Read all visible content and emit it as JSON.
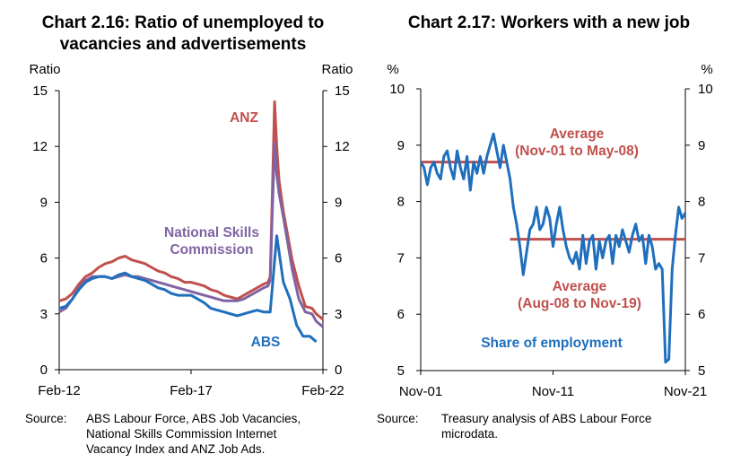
{
  "chart_data": [
    {
      "type": "line",
      "title_lines": [
        "Chart 2.16: Ratio of unemployed to",
        "vacancies and advertisements"
      ],
      "ylabel_left": "Ratio",
      "ylabel_right": "Ratio",
      "ylim": [
        0,
        15
      ],
      "yticks": [
        0,
        3,
        6,
        9,
        12,
        15
      ],
      "xlim": [
        "2012-02",
        "2022-02"
      ],
      "xticks": [
        {
          "label": "Feb-12",
          "date": "2012-02"
        },
        {
          "label": "Feb-17",
          "date": "2017-02"
        },
        {
          "label": "Feb-22",
          "date": "2022-02"
        }
      ],
      "series": [
        {
          "name": "ANZ",
          "color": "#c0504d",
          "points": [
            [
              "2012-02",
              3.7
            ],
            [
              "2012-05",
              3.8
            ],
            [
              "2012-08",
              4.1
            ],
            [
              "2012-11",
              4.6
            ],
            [
              "2013-02",
              5.0
            ],
            [
              "2013-05",
              5.2
            ],
            [
              "2013-08",
              5.5
            ],
            [
              "2013-11",
              5.7
            ],
            [
              "2014-02",
              5.8
            ],
            [
              "2014-05",
              6.0
            ],
            [
              "2014-08",
              6.1
            ],
            [
              "2014-11",
              5.9
            ],
            [
              "2015-02",
              5.8
            ],
            [
              "2015-05",
              5.7
            ],
            [
              "2015-08",
              5.5
            ],
            [
              "2015-11",
              5.3
            ],
            [
              "2016-02",
              5.2
            ],
            [
              "2016-05",
              5.0
            ],
            [
              "2016-08",
              4.9
            ],
            [
              "2016-11",
              4.7
            ],
            [
              "2017-02",
              4.7
            ],
            [
              "2017-05",
              4.6
            ],
            [
              "2017-08",
              4.5
            ],
            [
              "2017-11",
              4.3
            ],
            [
              "2018-02",
              4.2
            ],
            [
              "2018-05",
              4.0
            ],
            [
              "2018-08",
              3.9
            ],
            [
              "2018-11",
              3.8
            ],
            [
              "2019-02",
              4.0
            ],
            [
              "2019-05",
              4.2
            ],
            [
              "2019-08",
              4.4
            ],
            [
              "2019-11",
              4.6
            ],
            [
              "2020-01",
              4.7
            ],
            [
              "2020-02",
              5.0
            ],
            [
              "2020-03",
              9.5
            ],
            [
              "2020-04",
              14.4
            ],
            [
              "2020-05",
              12.0
            ],
            [
              "2020-06",
              10.2
            ],
            [
              "2020-08",
              8.5
            ],
            [
              "2020-10",
              7.2
            ],
            [
              "2020-12",
              5.9
            ],
            [
              "2021-03",
              4.5
            ],
            [
              "2021-06",
              3.4
            ],
            [
              "2021-09",
              3.3
            ],
            [
              "2021-11",
              3.0
            ],
            [
              "2022-02",
              2.7
            ]
          ]
        },
        {
          "name": "National Skills Commission",
          "color": "#8064a2",
          "points": [
            [
              "2012-02",
              3.1
            ],
            [
              "2012-05",
              3.3
            ],
            [
              "2012-08",
              3.8
            ],
            [
              "2012-11",
              4.4
            ],
            [
              "2013-02",
              4.8
            ],
            [
              "2013-05",
              5.0
            ],
            [
              "2013-08",
              5.0
            ],
            [
              "2013-11",
              5.0
            ],
            [
              "2014-02",
              4.9
            ],
            [
              "2014-05",
              5.0
            ],
            [
              "2014-08",
              5.1
            ],
            [
              "2014-11",
              5.0
            ],
            [
              "2015-02",
              5.0
            ],
            [
              "2015-05",
              4.9
            ],
            [
              "2015-08",
              4.8
            ],
            [
              "2015-11",
              4.7
            ],
            [
              "2016-02",
              4.6
            ],
            [
              "2016-05",
              4.5
            ],
            [
              "2016-08",
              4.4
            ],
            [
              "2016-11",
              4.3
            ],
            [
              "2017-02",
              4.2
            ],
            [
              "2017-05",
              4.1
            ],
            [
              "2017-08",
              4.0
            ],
            [
              "2017-11",
              3.9
            ],
            [
              "2018-02",
              3.8
            ],
            [
              "2018-05",
              3.7
            ],
            [
              "2018-08",
              3.7
            ],
            [
              "2018-11",
              3.7
            ],
            [
              "2019-02",
              3.8
            ],
            [
              "2019-05",
              4.0
            ],
            [
              "2019-08",
              4.2
            ],
            [
              "2019-11",
              4.4
            ],
            [
              "2020-01",
              4.5
            ],
            [
              "2020-02",
              4.8
            ],
            [
              "2020-03",
              8.5
            ],
            [
              "2020-04",
              12.2
            ],
            [
              "2020-05",
              10.5
            ],
            [
              "2020-06",
              9.5
            ],
            [
              "2020-08",
              8.2
            ],
            [
              "2020-10",
              6.8
            ],
            [
              "2020-12",
              5.4
            ],
            [
              "2021-03",
              3.8
            ],
            [
              "2021-06",
              3.1
            ],
            [
              "2021-09",
              3.0
            ],
            [
              "2021-11",
              2.6
            ],
            [
              "2022-02",
              2.3
            ]
          ]
        },
        {
          "name": "ABS",
          "color": "#1f6fbd",
          "points": [
            [
              "2012-02",
              3.3
            ],
            [
              "2012-05",
              3.4
            ],
            [
              "2012-08",
              3.8
            ],
            [
              "2012-11",
              4.3
            ],
            [
              "2013-02",
              4.7
            ],
            [
              "2013-05",
              4.9
            ],
            [
              "2013-08",
              5.0
            ],
            [
              "2013-11",
              5.0
            ],
            [
              "2014-02",
              4.9
            ],
            [
              "2014-05",
              5.1
            ],
            [
              "2014-08",
              5.2
            ],
            [
              "2014-11",
              5.0
            ],
            [
              "2015-02",
              4.9
            ],
            [
              "2015-05",
              4.8
            ],
            [
              "2015-08",
              4.6
            ],
            [
              "2015-11",
              4.4
            ],
            [
              "2016-02",
              4.3
            ],
            [
              "2016-05",
              4.1
            ],
            [
              "2016-08",
              4.0
            ],
            [
              "2016-11",
              4.0
            ],
            [
              "2017-02",
              4.0
            ],
            [
              "2017-05",
              3.8
            ],
            [
              "2017-08",
              3.6
            ],
            [
              "2017-11",
              3.3
            ],
            [
              "2018-02",
              3.2
            ],
            [
              "2018-05",
              3.1
            ],
            [
              "2018-08",
              3.0
            ],
            [
              "2018-11",
              2.9
            ],
            [
              "2019-02",
              3.0
            ],
            [
              "2019-05",
              3.1
            ],
            [
              "2019-08",
              3.2
            ],
            [
              "2019-11",
              3.1
            ],
            [
              "2020-02",
              3.1
            ],
            [
              "2020-05",
              7.2
            ],
            [
              "2020-08",
              4.7
            ],
            [
              "2020-11",
              3.8
            ],
            [
              "2021-02",
              2.4
            ],
            [
              "2021-05",
              1.8
            ],
            [
              "2021-08",
              1.8
            ],
            [
              "2021-11",
              1.5
            ]
          ]
        }
      ]
    },
    {
      "type": "line",
      "title_lines": [
        "Chart 2.17: Workers with a new job"
      ],
      "ylabel_left": "%",
      "ylabel_right": "%",
      "ylim": [
        5,
        10
      ],
      "yticks": [
        5,
        6,
        7,
        8,
        9,
        10
      ],
      "xlim": [
        "2001-11",
        "2021-11"
      ],
      "xticks": [
        {
          "label": "Nov-01",
          "date": "2001-11"
        },
        {
          "label": "Nov-11",
          "date": "2011-11"
        },
        {
          "label": "Nov-21",
          "date": "2021-11"
        }
      ],
      "series": [
        {
          "name": "Share of employment",
          "color": "#1f6fbd",
          "points": [
            [
              "2001-11",
              8.7
            ],
            [
              "2002-02",
              8.6
            ],
            [
              "2002-05",
              8.3
            ],
            [
              "2002-08",
              8.6
            ],
            [
              "2002-11",
              8.7
            ],
            [
              "2003-02",
              8.5
            ],
            [
              "2003-05",
              8.4
            ],
            [
              "2003-08",
              8.8
            ],
            [
              "2003-11",
              8.9
            ],
            [
              "2004-02",
              8.6
            ],
            [
              "2004-05",
              8.4
            ],
            [
              "2004-08",
              8.9
            ],
            [
              "2004-11",
              8.6
            ],
            [
              "2005-02",
              8.4
            ],
            [
              "2005-05",
              8.8
            ],
            [
              "2005-08",
              8.2
            ],
            [
              "2005-11",
              8.7
            ],
            [
              "2006-02",
              8.5
            ],
            [
              "2006-05",
              8.8
            ],
            [
              "2006-08",
              8.5
            ],
            [
              "2006-11",
              8.8
            ],
            [
              "2007-02",
              9.0
            ],
            [
              "2007-05",
              9.2
            ],
            [
              "2007-08",
              8.9
            ],
            [
              "2007-11",
              8.6
            ],
            [
              "2008-02",
              9.0
            ],
            [
              "2008-05",
              8.7
            ],
            [
              "2008-08",
              8.4
            ],
            [
              "2008-11",
              7.9
            ],
            [
              "2009-02",
              7.6
            ],
            [
              "2009-05",
              7.2
            ],
            [
              "2009-08",
              6.7
            ],
            [
              "2009-11",
              7.1
            ],
            [
              "2010-02",
              7.5
            ],
            [
              "2010-05",
              7.6
            ],
            [
              "2010-08",
              7.9
            ],
            [
              "2010-11",
              7.5
            ],
            [
              "2011-02",
              7.6
            ],
            [
              "2011-05",
              7.9
            ],
            [
              "2011-08",
              7.7
            ],
            [
              "2011-11",
              7.2
            ],
            [
              "2012-02",
              7.6
            ],
            [
              "2012-05",
              7.9
            ],
            [
              "2012-08",
              7.5
            ],
            [
              "2012-11",
              7.2
            ],
            [
              "2013-02",
              7.0
            ],
            [
              "2013-05",
              6.9
            ],
            [
              "2013-08",
              7.1
            ],
            [
              "2013-11",
              6.8
            ],
            [
              "2014-02",
              7.4
            ],
            [
              "2014-05",
              6.9
            ],
            [
              "2014-08",
              7.3
            ],
            [
              "2014-11",
              7.4
            ],
            [
              "2015-02",
              6.8
            ],
            [
              "2015-05",
              7.3
            ],
            [
              "2015-08",
              7.0
            ],
            [
              "2015-11",
              7.3
            ],
            [
              "2016-02",
              7.4
            ],
            [
              "2016-05",
              6.9
            ],
            [
              "2016-08",
              7.4
            ],
            [
              "2016-11",
              7.2
            ],
            [
              "2017-02",
              7.5
            ],
            [
              "2017-05",
              7.3
            ],
            [
              "2017-08",
              7.1
            ],
            [
              "2017-11",
              7.4
            ],
            [
              "2018-02",
              7.6
            ],
            [
              "2018-05",
              7.3
            ],
            [
              "2018-08",
              7.4
            ],
            [
              "2018-11",
              6.9
            ],
            [
              "2019-02",
              7.4
            ],
            [
              "2019-05",
              7.2
            ],
            [
              "2019-08",
              6.8
            ],
            [
              "2019-11",
              6.9
            ],
            [
              "2020-02",
              6.8
            ],
            [
              "2020-05",
              5.15
            ],
            [
              "2020-08",
              5.2
            ],
            [
              "2020-11",
              6.8
            ],
            [
              "2021-02",
              7.4
            ],
            [
              "2021-05",
              7.9
            ],
            [
              "2021-08",
              7.7
            ],
            [
              "2021-11",
              7.8
            ]
          ]
        }
      ],
      "reference_lines": [
        {
          "name": "Average (Nov-01 to May-08)",
          "label_lines": [
            "Average",
            "(Nov-01 to May-08)"
          ],
          "value": 8.7,
          "from": "2001-11",
          "to": "2008-05",
          "color": "#c0504d"
        },
        {
          "name": "Average (Aug-08 to Nov-19)",
          "label_lines": [
            "Average",
            "(Aug-08 to Nov-19)"
          ],
          "value": 7.33,
          "from": "2008-08",
          "to": "2021-11",
          "color": "#c0504d"
        }
      ]
    }
  ],
  "sources": [
    {
      "label": "Source:",
      "lines": [
        "ABS Labour Force, ABS Job Vacancies,",
        "National Skills Commission Internet",
        "Vacancy Index and ANZ Job Ads."
      ]
    },
    {
      "label": "Source:",
      "lines": [
        "Treasury analysis of ABS Labour Force",
        "microdata."
      ]
    }
  ]
}
